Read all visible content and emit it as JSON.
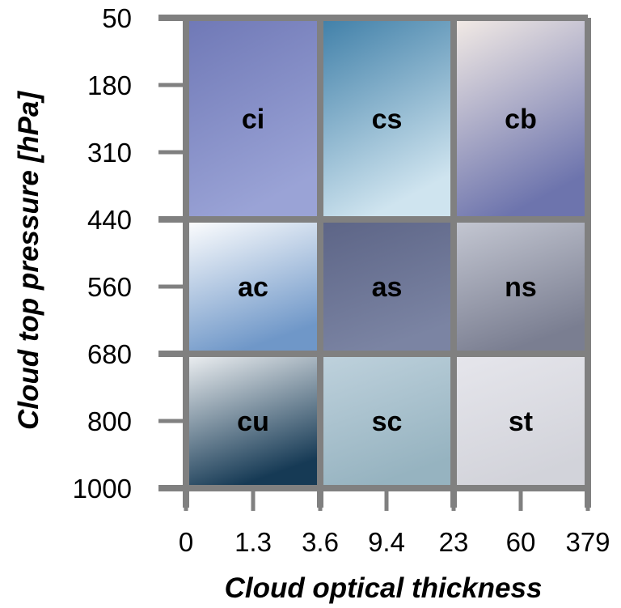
{
  "chart_data": {
    "type": "heatmap",
    "xlabel": "Cloud optical thickness",
    "ylabel": "Cloud top pressure [hPa]",
    "x_ticks": [
      "0",
      "1.3",
      "3.6",
      "9.4",
      "23",
      "60",
      "379"
    ],
    "y_ticks": [
      "50",
      "180",
      "310",
      "440",
      "560",
      "680",
      "800",
      "1000"
    ],
    "grid": true,
    "x_bins": [
      {
        "from": "0",
        "to": "3.6"
      },
      {
        "from": "3.6",
        "to": "23"
      },
      {
        "from": "23",
        "to": "379"
      }
    ],
    "y_bins": [
      {
        "from": "50",
        "to": "440"
      },
      {
        "from": "440",
        "to": "680"
      },
      {
        "from": "680",
        "to": "1000"
      }
    ],
    "cells": [
      {
        "label": "ci",
        "col": 0,
        "row": 0,
        "colors": [
          "#6f78b6",
          "#9aa3d6"
        ]
      },
      {
        "label": "cs",
        "col": 1,
        "row": 0,
        "colors": [
          "#3f7fa8",
          "#cfe4ef"
        ]
      },
      {
        "label": "cb",
        "col": 2,
        "row": 0,
        "colors": [
          "#f4ece6",
          "#6d74ad"
        ]
      },
      {
        "label": "ac",
        "col": 0,
        "row": 1,
        "colors": [
          "#ffffff",
          "#6f97c8"
        ]
      },
      {
        "label": "as",
        "col": 1,
        "row": 1,
        "colors": [
          "#5c6486",
          "#7b84a3"
        ]
      },
      {
        "label": "ns",
        "col": 2,
        "row": 1,
        "colors": [
          "#c5c8d3",
          "#7a7e91"
        ]
      },
      {
        "label": "cu",
        "col": 0,
        "row": 2,
        "colors": [
          "#f0f2f4",
          "#163a55"
        ]
      },
      {
        "label": "sc",
        "col": 1,
        "row": 2,
        "colors": [
          "#bfd2dd",
          "#96b3c0"
        ]
      },
      {
        "label": "st",
        "col": 2,
        "row": 2,
        "colors": [
          "#e6e6ec",
          "#d2d3da"
        ]
      }
    ],
    "grid_color": "#808080"
  }
}
